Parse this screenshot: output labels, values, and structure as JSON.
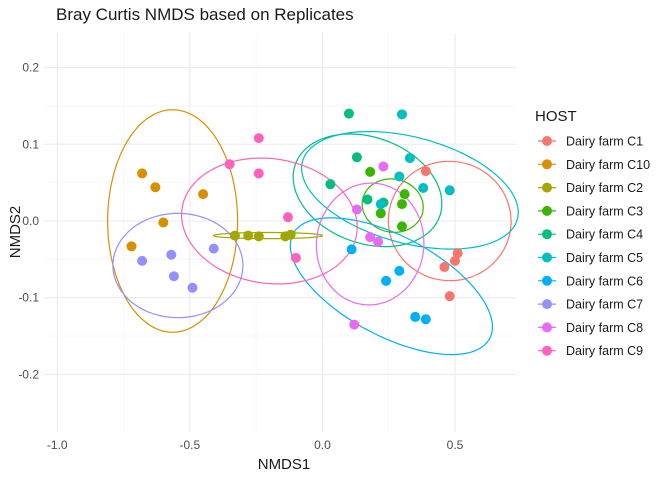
{
  "chart_data": {
    "type": "scatter",
    "title": "Bray Curtis NMDS based on Replicates",
    "xlabel": "NMDS1",
    "ylabel": "NMDS2",
    "xlim": [
      -1.05,
      0.73
    ],
    "ylim": [
      -0.275,
      0.245
    ],
    "x_ticks": [
      -1.0,
      -0.5,
      0.0,
      0.5
    ],
    "x_tick_labels": [
      "-1.0",
      "-0.5",
      "0.0",
      "0.5"
    ],
    "y_ticks": [
      -0.2,
      -0.1,
      0.0,
      0.1,
      0.2
    ],
    "y_tick_labels": [
      "-0.2",
      "-0.1",
      "0.0",
      "0.1",
      "0.2"
    ],
    "grid": true,
    "legend_title": "HOST",
    "legend_position": "right",
    "series": [
      {
        "name": "Dairy farm C1",
        "color": "#F8766D",
        "points": [
          [
            0.39,
            0.065
          ],
          [
            0.51,
            -0.042
          ],
          [
            0.5,
            -0.052
          ],
          [
            0.46,
            -0.06
          ],
          [
            0.48,
            -0.098
          ]
        ],
        "ellipse": {
          "cx": 0.48,
          "cy": 0.0,
          "rx": 0.225,
          "ry": 0.08,
          "angle": -83
        }
      },
      {
        "name": "Dairy farm C10",
        "color": "#D89000",
        "points": [
          [
            -0.68,
            0.062
          ],
          [
            -0.63,
            0.044
          ],
          [
            -0.45,
            0.035
          ],
          [
            -0.6,
            -0.002
          ],
          [
            -0.72,
            -0.033
          ]
        ],
        "ellipse": {
          "cx": -0.565,
          "cy": 0.0,
          "rx": 0.245,
          "ry": 0.145,
          "angle": 0
        }
      },
      {
        "name": "Dairy farm C2",
        "color": "#A3A500",
        "points": [
          [
            -0.33,
            -0.019
          ],
          [
            -0.28,
            -0.019
          ],
          [
            -0.24,
            -0.02
          ],
          [
            -0.14,
            -0.02
          ],
          [
            -0.12,
            -0.018
          ]
        ],
        "ellipse": {
          "cx": -0.205,
          "cy": -0.019,
          "rx": 0.205,
          "ry": 0.004,
          "angle": 0
        }
      },
      {
        "name": "Dairy farm C3",
        "color": "#39B600",
        "points": [
          [
            0.18,
            0.064
          ],
          [
            0.31,
            0.035
          ],
          [
            0.3,
            0.022
          ],
          [
            0.22,
            0.01
          ],
          [
            0.3,
            -0.007
          ]
        ],
        "ellipse": {
          "cx": 0.265,
          "cy": 0.02,
          "rx": 0.1,
          "ry": 0.04,
          "angle": -78
        }
      },
      {
        "name": "Dairy farm C4",
        "color": "#00BF7D",
        "points": [
          [
            0.1,
            0.14
          ],
          [
            0.13,
            0.083
          ],
          [
            0.03,
            0.048
          ],
          [
            0.17,
            0.028
          ],
          [
            0.23,
            0.024
          ]
        ],
        "ellipse": {
          "cx": 0.17,
          "cy": 0.04,
          "rx": 0.2,
          "ry": 0.1,
          "angle": -70
        }
      },
      {
        "name": "Dairy farm C5",
        "color": "#00BFC4",
        "points": [
          [
            0.3,
            0.139
          ],
          [
            0.33,
            0.082
          ],
          [
            0.29,
            0.058
          ],
          [
            0.38,
            0.043
          ],
          [
            0.48,
            0.04
          ],
          [
            0.22,
            0.022
          ]
        ],
        "ellipse": {
          "cx": 0.33,
          "cy": 0.04,
          "rx": 0.2,
          "ry": 0.145,
          "angle": -75
        }
      },
      {
        "name": "Dairy farm C6",
        "color": "#00B0F6",
        "points": [
          [
            0.11,
            -0.037
          ],
          [
            0.29,
            -0.065
          ],
          [
            0.24,
            -0.078
          ],
          [
            0.35,
            -0.125
          ],
          [
            0.39,
            -0.128
          ]
        ],
        "ellipse": {
          "cx": 0.26,
          "cy": -0.085,
          "rx": 0.42,
          "ry": 0.065,
          "angle": 28
        }
      },
      {
        "name": "Dairy farm C7",
        "color": "#9590FF",
        "points": [
          [
            -0.41,
            -0.036
          ],
          [
            -0.57,
            -0.044
          ],
          [
            -0.68,
            -0.052
          ],
          [
            -0.56,
            -0.072
          ],
          [
            -0.49,
            -0.087
          ]
        ],
        "ellipse": {
          "cx": -0.545,
          "cy": -0.058,
          "rx": 0.245,
          "ry": 0.068,
          "angle": 0
        }
      },
      {
        "name": "Dairy farm C8",
        "color": "#E76BF3",
        "points": [
          [
            0.23,
            0.071
          ],
          [
            0.13,
            0.015
          ],
          [
            0.18,
            -0.021
          ],
          [
            0.21,
            -0.027
          ],
          [
            0.12,
            -0.135
          ]
        ],
        "ellipse": {
          "cx": 0.18,
          "cy": -0.03,
          "rx": 0.23,
          "ry": 0.07,
          "angle": -85
        }
      },
      {
        "name": "Dairy farm C9",
        "color": "#FF62BC",
        "points": [
          [
            -0.24,
            0.108
          ],
          [
            -0.35,
            0.074
          ],
          [
            -0.24,
            0.062
          ],
          [
            -0.13,
            0.005
          ],
          [
            -0.1,
            -0.048
          ]
        ],
        "ellipse": {
          "cx": -0.2,
          "cy": 0.0,
          "rx": 0.235,
          "ry": 0.115,
          "angle": -82
        }
      }
    ]
  }
}
